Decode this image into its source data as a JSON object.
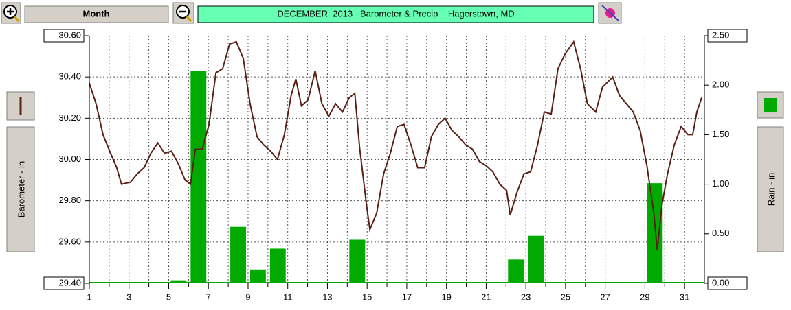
{
  "toolbar": {
    "period": "Month",
    "title": "DECEMBER  2013   Barometer & Precip    Hagerstown, MD"
  },
  "chart_data": {
    "type": "combo",
    "xlim": [
      1,
      32
    ],
    "xticks": [
      1,
      3,
      5,
      7,
      9,
      11,
      13,
      15,
      17,
      19,
      21,
      23,
      25,
      27,
      29,
      31
    ],
    "xminor": [
      2,
      4,
      6,
      8,
      10,
      12,
      14,
      16,
      18,
      20,
      22,
      24,
      26,
      28,
      30
    ],
    "ylim": [
      29.4,
      30.6
    ],
    "yticks": [
      {
        "value": 29.4,
        "label": "29.40"
      },
      {
        "value": 29.6,
        "label": "29.60"
      },
      {
        "value": 29.8,
        "label": "29.80"
      },
      {
        "value": 30,
        "label": "30.00"
      },
      {
        "value": 30.2,
        "label": "30.20"
      },
      {
        "value": 30.4,
        "label": "30.40"
      },
      {
        "value": 30.6,
        "label": "30.60"
      }
    ],
    "y2lim": [
      0,
      2.5
    ],
    "y2ticks": [
      {
        "value": 0,
        "label": "0.00"
      },
      {
        "value": 0.5,
        "label": "0.50"
      },
      {
        "value": 1,
        "label": "1.00"
      },
      {
        "value": 1.5,
        "label": "1.50"
      },
      {
        "value": 2,
        "label": "2.00"
      },
      {
        "value": 2.5,
        "label": "2.50"
      }
    ],
    "grid": true,
    "series": [
      {
        "name": "Barometer - in",
        "type": "line",
        "color": "#5a1f14",
        "axis": "y",
        "x": [
          1.0,
          1.34,
          1.69,
          2.03,
          2.38,
          2.62,
          3.07,
          3.41,
          3.76,
          4.1,
          4.45,
          4.79,
          5.14,
          5.48,
          5.83,
          6.1,
          6.34,
          6.69,
          7.03,
          7.38,
          7.72,
          8.07,
          8.41,
          8.76,
          9.1,
          9.45,
          9.79,
          10.14,
          10.48,
          10.83,
          11.17,
          11.41,
          11.69,
          12.03,
          12.38,
          12.72,
          13.07,
          13.41,
          13.76,
          14.1,
          14.38,
          14.62,
          14.97,
          15.14,
          15.48,
          15.83,
          16.17,
          16.52,
          16.86,
          17.21,
          17.55,
          17.9,
          18.24,
          18.59,
          18.93,
          19.28,
          19.62,
          19.97,
          20.31,
          20.66,
          21.0,
          21.34,
          21.69,
          22.03,
          22.21,
          22.55,
          22.9,
          23.24,
          23.59,
          23.93,
          24.28,
          24.62,
          24.97,
          25.41,
          25.76,
          26.1,
          26.52,
          26.86,
          27.38,
          27.72,
          28.07,
          28.41,
          28.76,
          29.1,
          29.45,
          29.62,
          29.86,
          30.14,
          30.48,
          30.83,
          31.17,
          31.41,
          31.62,
          31.86
        ],
        "values": [
          30.37,
          30.27,
          30.12,
          30.04,
          29.96,
          29.88,
          29.89,
          29.93,
          29.96,
          30.03,
          30.08,
          30.03,
          30.04,
          29.98,
          29.9,
          29.88,
          30.05,
          30.05,
          30.17,
          30.42,
          30.44,
          30.56,
          30.57,
          30.49,
          30.27,
          30.11,
          30.07,
          30.04,
          30.0,
          30.12,
          30.31,
          30.39,
          30.26,
          30.29,
          30.43,
          30.27,
          30.21,
          30.27,
          30.23,
          30.3,
          30.32,
          30.06,
          29.78,
          29.66,
          29.74,
          29.93,
          30.03,
          30.16,
          30.17,
          30.07,
          29.96,
          29.96,
          30.11,
          30.17,
          30.2,
          30.14,
          30.11,
          30.07,
          30.05,
          29.99,
          29.97,
          29.94,
          29.88,
          29.85,
          29.73,
          29.84,
          29.93,
          29.94,
          30.07,
          30.23,
          30.22,
          30.44,
          30.51,
          30.57,
          30.44,
          30.27,
          30.23,
          30.35,
          30.4,
          30.31,
          30.27,
          30.23,
          30.14,
          29.97,
          29.74,
          29.56,
          29.78,
          29.93,
          30.07,
          30.16,
          30.12,
          30.12,
          30.23,
          30.3
        ]
      },
      {
        "name": "Rain - in",
        "type": "bar",
        "color": "#00aa00",
        "axis": "y2",
        "x": [
          1,
          2,
          3,
          4,
          5,
          6,
          7,
          8,
          9,
          10,
          11,
          12,
          13,
          14,
          15,
          16,
          17,
          18,
          19,
          20,
          21,
          22,
          23,
          24,
          25,
          26,
          27,
          28,
          29,
          30,
          31
        ],
        "values": [
          0,
          0,
          0,
          0,
          0.03,
          2.14,
          0,
          0.57,
          0.14,
          0.35,
          0,
          0,
          0,
          0.44,
          0,
          0,
          0.01,
          0,
          0,
          0,
          0,
          0.24,
          0.48,
          0,
          0,
          0,
          0,
          0,
          1.01,
          0,
          0
        ]
      }
    ]
  }
}
